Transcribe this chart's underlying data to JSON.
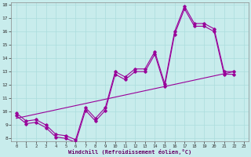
{
  "bg_color": "#c8ecec",
  "line_color": "#990099",
  "grid_color": "#aadddd",
  "xlim": [
    -0.5,
    23.5
  ],
  "ylim": [
    7.8,
    18.2
  ],
  "yticks": [
    8,
    9,
    10,
    11,
    12,
    13,
    14,
    15,
    16,
    17,
    18
  ],
  "xticks": [
    0,
    1,
    2,
    3,
    4,
    5,
    6,
    7,
    8,
    9,
    10,
    11,
    12,
    13,
    14,
    15,
    16,
    17,
    18,
    19,
    20,
    21,
    22,
    23
  ],
  "xlabel": "Windchill (Refroidissement éolien,°C)",
  "line1_x": [
    0,
    1,
    2,
    3,
    4,
    5,
    6,
    7,
    8,
    9,
    10,
    11,
    12,
    13,
    14,
    15,
    16,
    17,
    18,
    19,
    20,
    21,
    22
  ],
  "line1_y": [
    9.9,
    9.3,
    9.4,
    9.0,
    8.3,
    8.2,
    7.9,
    10.3,
    9.5,
    10.3,
    13.0,
    12.6,
    13.2,
    13.2,
    14.5,
    12.1,
    16.0,
    17.9,
    16.6,
    16.6,
    16.2,
    13.0,
    13.0
  ],
  "line2_x": [
    0,
    1,
    2,
    3,
    4,
    5,
    6,
    7,
    8,
    9,
    10,
    11,
    12,
    13,
    14,
    15,
    16,
    17,
    18,
    19,
    20,
    21,
    22
  ],
  "line2_y": [
    9.7,
    9.1,
    9.2,
    8.8,
    8.1,
    8.0,
    7.7,
    10.1,
    9.3,
    10.1,
    12.8,
    12.4,
    13.0,
    13.0,
    14.3,
    11.9,
    15.8,
    17.7,
    16.4,
    16.4,
    16.0,
    12.8,
    12.8
  ],
  "line3_x": [
    0,
    22
  ],
  "line3_y": [
    9.5,
    13.0
  ],
  "markersize": 1.8,
  "linewidth": 0.8
}
